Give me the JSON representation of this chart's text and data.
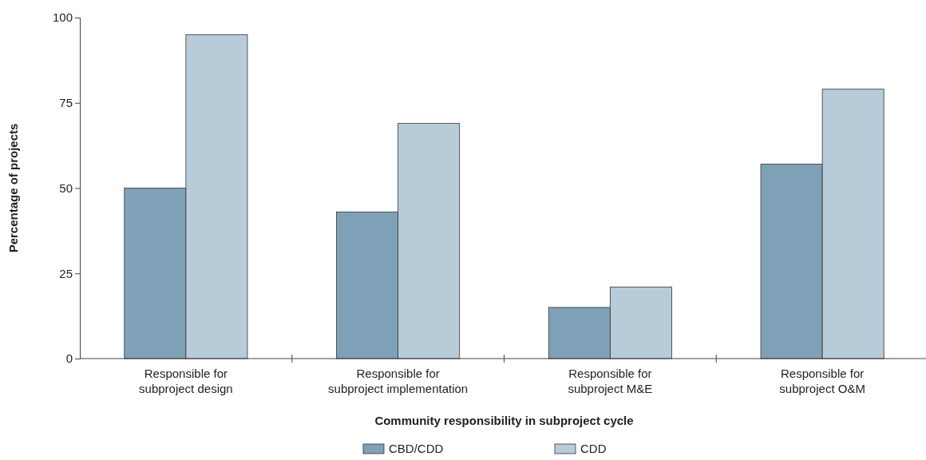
{
  "chart_data": {
    "type": "bar",
    "xlabel": "Community responsibility in subproject cycle",
    "ylabel": "Percentage of projects",
    "categories": [
      "Responsible for subproject design",
      "Responsible for subproject implementation",
      "Responsible for subproject M&E",
      "Responsible for subproject O&M"
    ],
    "series": [
      {
        "name": "CBD/CDD",
        "color": "#7fa1b8",
        "values": [
          50,
          43,
          15,
          57
        ]
      },
      {
        "name": "CDD",
        "color": "#b8cbd8",
        "values": [
          95,
          69,
          21,
          79
        ]
      }
    ],
    "ylim": [
      0,
      100
    ],
    "yticks": [
      0,
      25,
      50,
      75,
      100
    ],
    "grid": false,
    "legend": "bottom"
  }
}
